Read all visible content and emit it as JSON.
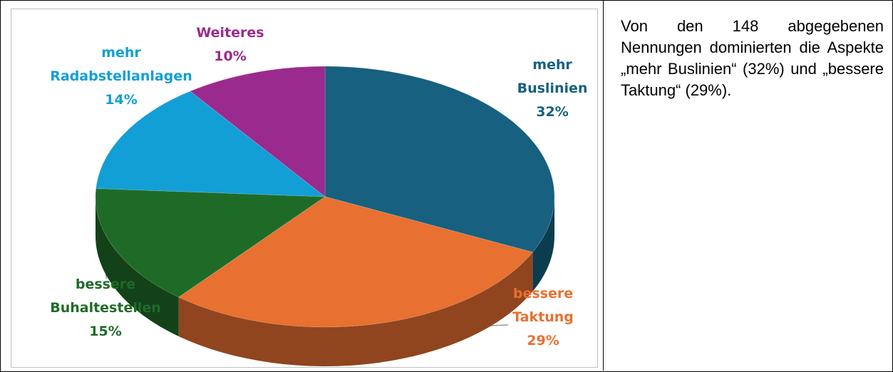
{
  "chart_data": {
    "type": "pie",
    "categories": [
      "mehr\nBuslinien",
      "bessere\nTaktung",
      "bessere\nBuhaltestellen",
      "mehr\nRadabstellanlagen",
      "Weiteres"
    ],
    "values": [
      32,
      29,
      15,
      14,
      10
    ],
    "value_labels": [
      "32%",
      "29%",
      "15%",
      "14%",
      "10%"
    ],
    "colors": [
      "#17607f",
      "#e87030",
      "#1e6b28",
      "#129fd6",
      "#9b2a8f"
    ],
    "label_colors": [
      "#17607f",
      "#e87030",
      "#1e6b28",
      "#129fd6",
      "#9b2a8f"
    ]
  },
  "text": "Von den 148 abgegebenen Nennungen dominierten die Aspekte „mehr Buslinien“ (32%) und „bessere Tak­tung“ (29%)."
}
